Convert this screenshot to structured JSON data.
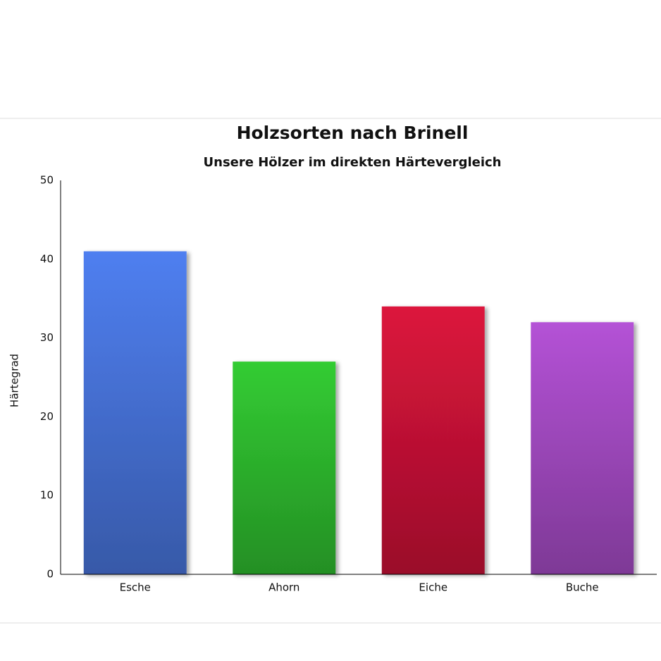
{
  "chart_data": {
    "type": "bar",
    "title": "Holzsorten nach Brinell",
    "subtitle": "Unsere Hölzer im direkten Härtevergleich",
    "y_label": "Härtegrad",
    "categories": [
      "Esche",
      "Ahorn",
      "Eiche",
      "Buche"
    ],
    "values": [
      41,
      27,
      34,
      32
    ],
    "colors": [
      "#4f7ff0",
      "#33cc33",
      "#dc143c",
      "#b452d6"
    ],
    "ylim": [
      0,
      50
    ],
    "yticks": [
      0,
      10,
      20,
      30,
      40,
      50
    ],
    "grid": false
  }
}
